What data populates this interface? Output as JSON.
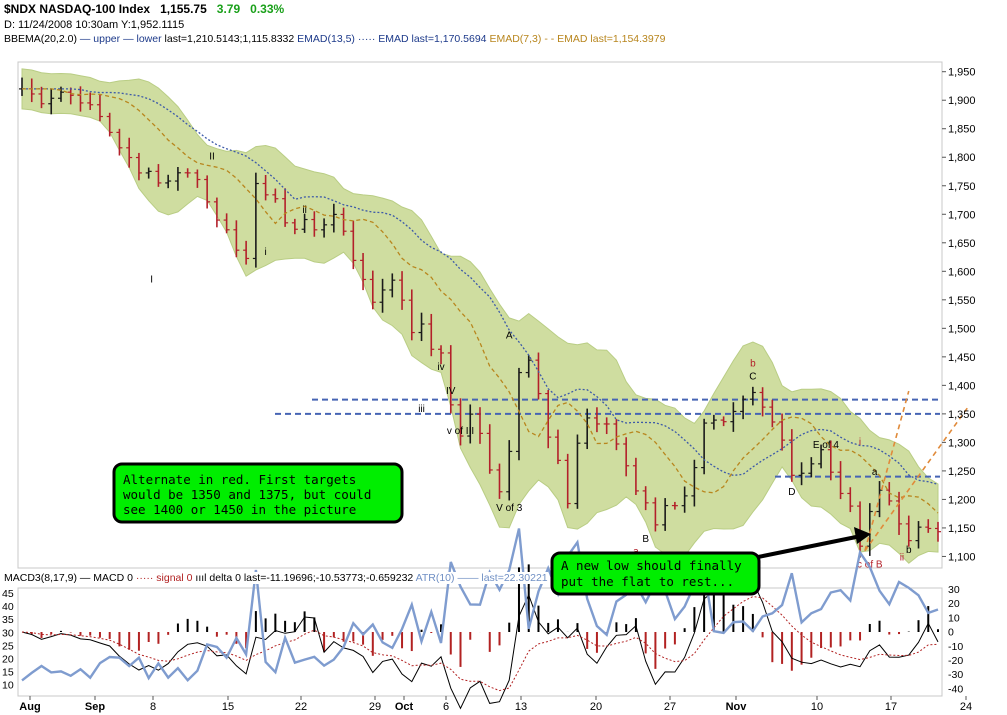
{
  "header": {
    "symbol": "$NDX NASDAQ-100 Index",
    "last": "1,155.75",
    "change": "3.79",
    "change_pct": "0.33%",
    "date_line": "D: 11/24/2008  10:30am  Y:1,952.1115",
    "bb_label": "BBEMA(20,2.0)",
    "bb_upper": "— upper",
    "bb_lower": "— lower",
    "bb_last": "last=1,210.5143;1,115.8332",
    "emad1_label": "EMAD(13,5)",
    "emad1_last": "····· EMAD last=1,170.5694",
    "emad2_label": "EMAD(7,3)",
    "emad2_last": "- - EMAD last=1,154.3979"
  },
  "colors": {
    "band": "#cfdda0",
    "band_edge": "#b9cd84",
    "bar": "#222222",
    "down": "#b3202a",
    "up": "#1a1a1a",
    "emad1": "#3d5aa8",
    "emad2": "#b8861e",
    "level_line": "#4664b4",
    "note_bg": "#00ee00",
    "wave_label": "#000000",
    "alt_label": "#b3202a",
    "macd_line": "#000000",
    "signal_line": "#b22222",
    "atr_line": "#7f9ccf"
  },
  "price_axis": {
    "ticks": [
      "1,950",
      "1,900",
      "1,850",
      "1,800",
      "1,750",
      "1,700",
      "1,650",
      "1,600",
      "1,550",
      "1,500",
      "1,450",
      "1,400",
      "1,350",
      "1,300",
      "1,250",
      "1,200",
      "1,150",
      "1,100"
    ]
  },
  "x_axis": {
    "ticks": [
      "Aug",
      "Sep",
      "8",
      "15",
      "22",
      "29",
      "Oct",
      "6",
      "13",
      "20",
      "27",
      "Nov",
      "10",
      "17",
      "24"
    ]
  },
  "wave_labels": [
    {
      "t": "I",
      "x": 13.3,
      "y": 1580,
      "c": "black"
    },
    {
      "t": "II",
      "x": 19.5,
      "y": 1796,
      "c": "black"
    },
    {
      "t": "i",
      "x": 25,
      "y": 1629,
      "c": "black"
    },
    {
      "t": "ii",
      "x": 29,
      "y": 1702,
      "c": "black"
    },
    {
      "t": "iii",
      "x": 41,
      "y": 1353,
      "c": "black"
    },
    {
      "t": "iv",
      "x": 43,
      "y": 1427,
      "c": "black"
    },
    {
      "t": "IV",
      "x": 44,
      "y": 1385,
      "c": "black"
    },
    {
      "t": "v of III",
      "x": 45,
      "y": 1315,
      "c": "black"
    },
    {
      "t": "A",
      "x": 50,
      "y": 1482,
      "c": "black"
    },
    {
      "t": "V of 3",
      "x": 50,
      "y": 1180,
      "c": "black"
    },
    {
      "t": "B",
      "x": 64,
      "y": 1125,
      "c": "black"
    },
    {
      "t": "a",
      "x": 63,
      "y": 1103,
      "c": "red"
    },
    {
      "t": "b",
      "x": 75,
      "y": 1433,
      "c": "red"
    },
    {
      "t": "C",
      "x": 75,
      "y": 1410,
      "c": "black"
    },
    {
      "t": "E of 4",
      "x": 82.5,
      "y": 1290,
      "c": "black"
    },
    {
      "t": "D",
      "x": 79,
      "y": 1208,
      "c": "black"
    },
    {
      "t": "i",
      "x": 86,
      "y": 1295,
      "c": "red"
    },
    {
      "t": "a",
      "x": 87.5,
      "y": 1243,
      "c": "black"
    },
    {
      "t": "I",
      "x": 86,
      "y": 1097,
      "c": "black"
    },
    {
      "t": "c of B",
      "x": 87,
      "y": 1081,
      "c": "red"
    },
    {
      "t": "b",
      "x": 91,
      "y": 1106,
      "c": "black"
    },
    {
      "t": "ii",
      "x": 90.3,
      "y": 1093,
      "c": "red"
    }
  ],
  "annotations": [
    {
      "id": "alt-note",
      "lines": [
        "Alternate in red. First targets",
        "would be 1350 and 1375, but could",
        "see 1400 or 1450 in the picture"
      ]
    },
    {
      "id": "low-note",
      "lines": [
        "A new low should finally",
        "put the flat to rest..."
      ]
    }
  ],
  "macd_legend": {
    "macd": "MACD3(8,17,9)",
    "macd_line": "— MACD 0",
    "signal": "····· signal 0",
    "delta": "ıııl delta 0 last=-11.19696;-10.53773;-0.659232",
    "atr": "ATR(10)",
    "atr_last": "—— last=22.30221"
  },
  "macd_axis": {
    "left_ticks": [
      "45",
      "40",
      "35",
      "30",
      "25",
      "20",
      "15",
      "10"
    ],
    "right_ticks": [
      "30",
      "20",
      "10",
      "0",
      "-10",
      "-20",
      "-30",
      "-40"
    ]
  },
  "chart_data": {
    "type": "line",
    "title": "$NDX NASDAQ-100 Index",
    "price_range": [
      1085,
      1960
    ],
    "n_bars": 95,
    "close_path": [
      [
        0,
        1920
      ],
      [
        2,
        1900
      ],
      [
        4,
        1915
      ],
      [
        6,
        1902
      ],
      [
        8,
        1870
      ],
      [
        10,
        1820
      ],
      [
        12,
        1770
      ],
      [
        13,
        1782
      ],
      [
        14,
        1755
      ],
      [
        16,
        1770
      ],
      [
        17,
        1778
      ],
      [
        18,
        1760
      ],
      [
        19,
        1722
      ],
      [
        20,
        1695
      ],
      [
        21,
        1680
      ],
      [
        22,
        1630
      ],
      [
        23,
        1615
      ],
      [
        24,
        1760
      ],
      [
        25,
        1735
      ],
      [
        26,
        1720
      ],
      [
        27,
        1690
      ],
      [
        28,
        1675
      ],
      [
        29,
        1690
      ],
      [
        30,
        1670
      ],
      [
        31,
        1685
      ],
      [
        32,
        1705
      ],
      [
        34,
        1620
      ],
      [
        35,
        1590
      ],
      [
        36,
        1545
      ],
      [
        37,
        1570
      ],
      [
        38,
        1590
      ],
      [
        39,
        1545
      ],
      [
        40,
        1495
      ],
      [
        41,
        1510
      ],
      [
        42,
        1470
      ],
      [
        43,
        1450
      ],
      [
        44,
        1370
      ],
      [
        45,
        1305
      ],
      [
        46,
        1350
      ],
      [
        47,
        1320
      ],
      [
        48,
        1250
      ],
      [
        49,
        1215
      ],
      [
        50,
        1280
      ],
      [
        51,
        1420
      ],
      [
        52,
        1450
      ],
      [
        53,
        1390
      ],
      [
        54,
        1310
      ],
      [
        55,
        1275
      ],
      [
        56,
        1200
      ],
      [
        57,
        1300
      ],
      [
        58,
        1340
      ],
      [
        59,
        1330
      ],
      [
        60,
        1325
      ],
      [
        61,
        1300
      ],
      [
        62,
        1260
      ],
      [
        63,
        1215
      ],
      [
        64,
        1195
      ],
      [
        65,
        1150
      ],
      [
        66,
        1190
      ],
      [
        67,
        1190
      ],
      [
        68,
        1210
      ],
      [
        69,
        1260
      ],
      [
        70,
        1330
      ],
      [
        71,
        1345
      ],
      [
        72,
        1340
      ],
      [
        73,
        1350
      ],
      [
        74,
        1370
      ],
      [
        75,
        1380
      ],
      [
        76,
        1355
      ],
      [
        77,
        1330
      ],
      [
        78,
        1300
      ],
      [
        79,
        1240
      ],
      [
        80,
        1245
      ],
      [
        81,
        1270
      ],
      [
        82,
        1290
      ],
      [
        83,
        1250
      ],
      [
        84,
        1215
      ],
      [
        85,
        1190
      ],
      [
        86,
        1115
      ],
      [
        87,
        1175
      ],
      [
        88,
        1220
      ],
      [
        89,
        1190
      ],
      [
        90,
        1165
      ],
      [
        91,
        1130
      ],
      [
        92,
        1150
      ]
    ],
    "levels": [
      1375,
      1350,
      1240
    ],
    "targets_projection": [
      [
        86.5,
        1110
      ],
      [
        91,
        1390
      ],
      [
        97,
        1360
      ]
    ],
    "series": [
      {
        "name": "BBEMA(20,2.0) upper",
        "last": 1210.5143
      },
      {
        "name": "BBEMA(20,2.0) lower",
        "last": 1115.8332
      },
      {
        "name": "EMAD(13,5)",
        "last": 1170.5694
      },
      {
        "name": "EMAD(7,3)",
        "last": 1154.3979
      },
      {
        "name": "MACD3(8,17,9)",
        "last": -11.19696
      },
      {
        "name": "signal",
        "last": -10.53773
      },
      {
        "name": "delta",
        "last": -0.659232
      },
      {
        "name": "ATR(10)",
        "last": 22.30221
      }
    ]
  }
}
